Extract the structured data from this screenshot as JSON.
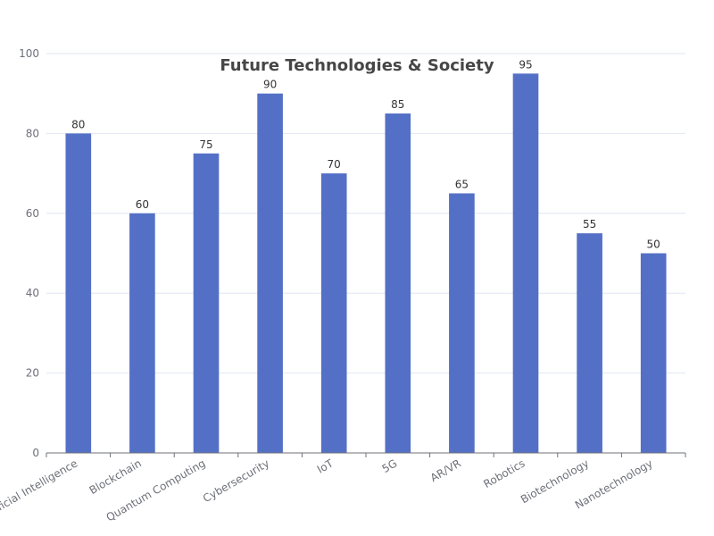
{
  "chart_data": {
    "type": "bar",
    "title": "Future Technologies & Society",
    "categories": [
      "Artificial Intelligence",
      "Blockchain",
      "Quantum Computing",
      "Cybersecurity",
      "IoT",
      "5G",
      "AR/VR",
      "Robotics",
      "Biotechnology",
      "Nanotechnology"
    ],
    "series": [
      {
        "values": [
          80,
          60,
          75,
          90,
          70,
          85,
          65,
          95,
          55,
          50
        ]
      }
    ],
    "ylim": [
      0,
      100
    ],
    "yticks": [
      0,
      20,
      40,
      60,
      80,
      100
    ],
    "grid": true,
    "data_labels": true,
    "colors": {
      "bar": "#5470c6",
      "grid": "#e0e6f1",
      "axis": "#6e7079"
    }
  }
}
